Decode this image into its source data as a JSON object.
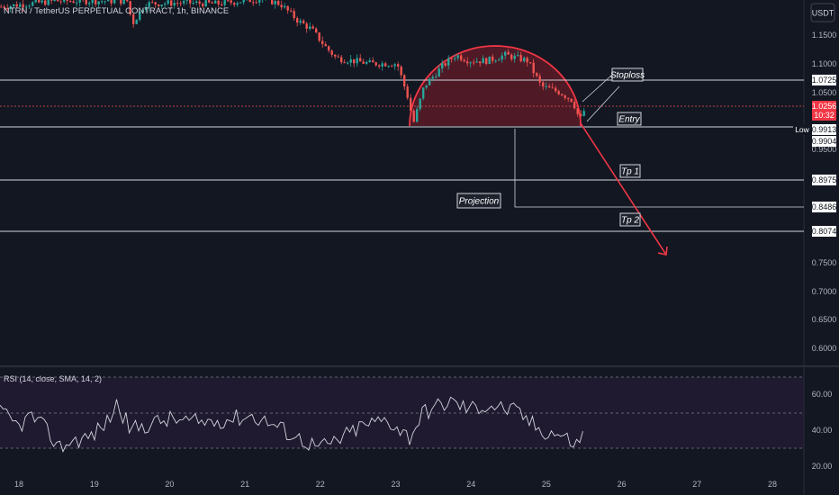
{
  "header": {
    "symbol": "NTRN / TetherUS PERPETUAL CONTRACT, 1h, BINANCE",
    "currency": "USDT"
  },
  "rsi_title": "RSI (14, close, SMA, 14, 2)",
  "colors": {
    "background": "#131722",
    "up": "#26a69a",
    "down": "#ef5350",
    "line": "#d1d4dc",
    "arc": "#f23645",
    "arc_fill": "#5b1a27",
    "rsi_band": "#1f1a30"
  },
  "chart_data": [
    {
      "type": "candlestick",
      "x_ticks": [
        "18",
        "19",
        "20",
        "21",
        "22",
        "23",
        "24",
        "25",
        "26",
        "27",
        "28"
      ],
      "y_ticks": [
        "1.1500",
        "1.1000",
        "1.0500",
        "0.9500",
        "0.7500",
        "0.7000",
        "0.6500",
        "0.6000"
      ],
      "y_range": [
        0.57,
        1.22
      ],
      "current_price": {
        "value": "1.0256",
        "countdown": "10:32"
      },
      "low_label": "Low",
      "low_value": "0.9913",
      "levels": [
        {
          "name": "stoploss",
          "price": 1.0725,
          "label": "1.0725",
          "tag": "Stoploss"
        },
        {
          "name": "entry",
          "price": 0.9904,
          "label": "0.9904",
          "tag": "Entry"
        },
        {
          "name": "tp1",
          "price": 0.8975,
          "label": "0.8975",
          "tag": "Tp 1"
        },
        {
          "name": "tp2",
          "price": 0.8074,
          "label": "0.8074",
          "tag": "Tp 2"
        },
        {
          "name": "projection",
          "price": 0.8486,
          "label": "0.8486",
          "tag": "Projection"
        }
      ],
      "pattern": "rounded top",
      "arrow": {
        "from_price": 0.995,
        "to_price": 0.77
      }
    },
    {
      "type": "line",
      "name": "RSI",
      "y_ticks": [
        "60.00",
        "40.00",
        "20.00"
      ],
      "y_range": [
        15,
        70
      ],
      "bands": [
        70,
        50,
        30
      ],
      "last_value": 39
    }
  ]
}
